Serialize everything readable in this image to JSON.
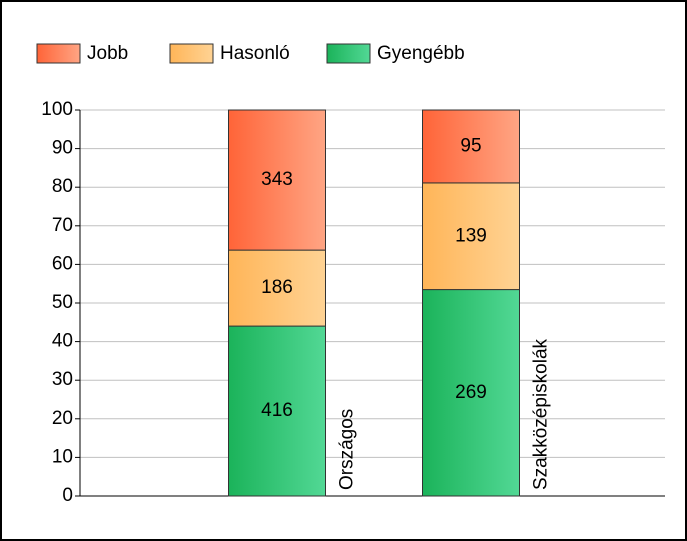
{
  "chart_data": {
    "type": "bar",
    "stacking": "percent",
    "categories": [
      "Országos",
      "Szakközépiskolák"
    ],
    "series": [
      {
        "name": "Jobb",
        "color": [
          "#ff6438",
          "#ffa584"
        ],
        "values": [
          343,
          95
        ]
      },
      {
        "name": "Hasonló",
        "color": [
          "#ffb558",
          "#ffd394"
        ],
        "values": [
          186,
          139
        ]
      },
      {
        "name": "Gyengébb",
        "color": [
          "#1bb35a",
          "#52d895"
        ],
        "values": [
          416,
          269
        ]
      }
    ],
    "ylim": [
      0,
      100
    ],
    "yticks": [
      0,
      10,
      20,
      30,
      40,
      50,
      60,
      70,
      80,
      90,
      100
    ],
    "grid": true,
    "legend": "top"
  }
}
